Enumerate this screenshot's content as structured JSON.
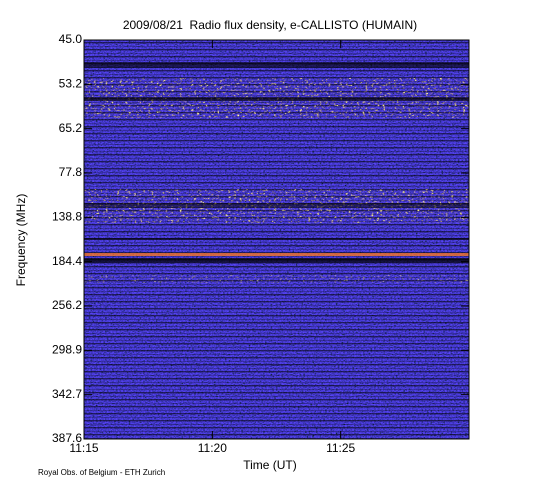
{
  "chart_data": {
    "type": "spectrogram",
    "title": "2009/08/21  Radio flux density, e-CALLISTO (HUMAIN)",
    "xlabel": "Time (UT)",
    "ylabel": "Frequency (MHz)",
    "xlim": [
      "11:15",
      "11:30"
    ],
    "xticks": [
      "11:15",
      "11:20",
      "11:25"
    ],
    "ylim": [
      45.0,
      387.6
    ],
    "yticks": [
      {
        "value": 45.0,
        "label": "45.0"
      },
      {
        "value": 53.2,
        "label": "53.2"
      },
      {
        "value": 65.2,
        "label": "65.2"
      },
      {
        "value": 77.8,
        "label": "77.8"
      },
      {
        "value": 138.8,
        "label": "138.8"
      },
      {
        "value": 184.4,
        "label": "184.4"
      },
      {
        "value": 256.2,
        "label": "256.2"
      },
      {
        "value": 298.9,
        "label": "298.9"
      },
      {
        "value": 342.7,
        "label": "342.7"
      },
      {
        "value": 387.6,
        "label": "387.6"
      }
    ],
    "footnote": "Royal Obs. of Belgium - ETH Zurich"
  }
}
